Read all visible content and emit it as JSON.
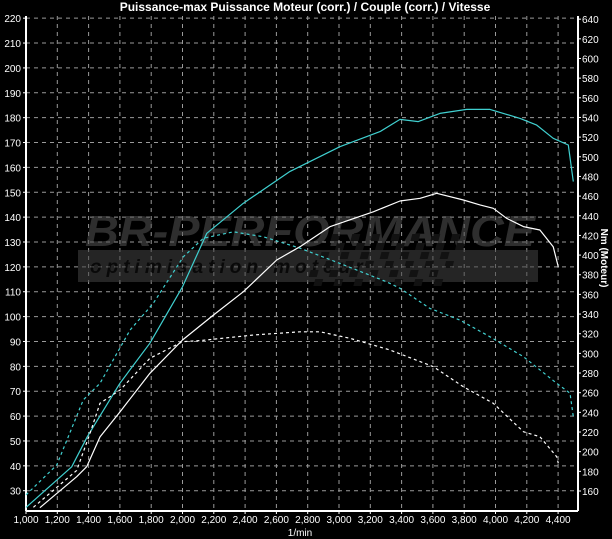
{
  "chart_data": {
    "type": "line",
    "title": "Puissance-max Puissance Moteur (corr.) / Couple (corr.) / Vitesse",
    "xlabel": "1/min",
    "ylabel_right": "Nm (Moteur)",
    "xlim": [
      1000,
      4520
    ],
    "ylim": [
      22,
      220
    ],
    "ylim_right": [
      140,
      640
    ],
    "x_ticks": [
      "1,000",
      "1,200",
      "1,400",
      "1,600",
      "1,800",
      "2,000",
      "2,200",
      "2,400",
      "2,600",
      "2,800",
      "3,000",
      "3,200",
      "3,400",
      "3,600",
      "3,800",
      "4,000",
      "4,200",
      "4,400"
    ],
    "y_ticks": [
      30,
      40,
      50,
      60,
      70,
      80,
      90,
      100,
      110,
      120,
      130,
      140,
      150,
      160,
      170,
      180,
      190,
      200,
      210,
      220
    ],
    "y_ticks_right": [
      160,
      180,
      200,
      220,
      240,
      260,
      280,
      300,
      320,
      340,
      360,
      380,
      400,
      420,
      440,
      460,
      480,
      500,
      520,
      540,
      560,
      580,
      600,
      620,
      640
    ],
    "grid": true,
    "background": "#000000",
    "colors": {
      "power": "#40d0d0",
      "torque": "#ffffff",
      "grid": "#9a9a9a"
    },
    "series": [
      {
        "axis": "left",
        "style": "solid",
        "color": "#40d0d0",
        "x": [
          1000,
          1292,
          1392,
          1600,
          1792,
          2000,
          2155,
          2389,
          2687,
          3006,
          3262,
          3390,
          3507,
          3645,
          3816,
          3965,
          4157,
          4263,
          4369,
          4465,
          4497
        ],
        "y": [
          23.3,
          39.6,
          51.7,
          73.2,
          89.3,
          112,
          133.5,
          145.6,
          158.4,
          168.3,
          174.4,
          179.3,
          178.4,
          181.7,
          183.3,
          183.3,
          179.7,
          177,
          171.7,
          169,
          154.3
        ]
      },
      {
        "axis": "right",
        "style": "solid",
        "color": "#ffffff",
        "x": [
          1089,
          1324,
          1388,
          1473,
          1601,
          1792,
          2000,
          2198,
          2389,
          2602,
          2751,
          2942,
          3219,
          3390,
          3518,
          3624,
          3795,
          3901,
          3986,
          4071,
          4178,
          4284,
          4369,
          4401
        ],
        "y": [
          143,
          174.5,
          184.7,
          215,
          240.7,
          279.7,
          313.6,
          339,
          362.7,
          395,
          408.5,
          428.9,
          444,
          455,
          457.8,
          462.8,
          456,
          451,
          447.6,
          437.4,
          429,
          425.5,
          408.5,
          388
        ]
      },
      {
        "axis": "left",
        "style": "dashed",
        "color": "#40d0d0",
        "x": [
          1000,
          1196,
          1366,
          1473,
          1665,
          1813,
          2006,
          2133,
          2325,
          2517,
          2751,
          3006,
          3304,
          3390,
          3581,
          3773,
          3965,
          4178,
          4391,
          4476,
          4497
        ],
        "y": [
          28.3,
          40.3,
          66.5,
          73.2,
          94.6,
          105.3,
          124.1,
          131.5,
          134.1,
          132.1,
          127.5,
          121.4,
          114,
          111.4,
          103.3,
          98.6,
          91.9,
          83.9,
          73.2,
          69.2,
          59.8
        ]
      },
      {
        "axis": "right",
        "style": "dashed",
        "color": "#ffffff",
        "x": [
          1047,
          1324,
          1409,
          1473,
          1601,
          1792,
          2000,
          2112,
          2453,
          2751,
          2879,
          3070,
          3326,
          3603,
          3795,
          3986,
          4178,
          4284,
          4391,
          4401
        ],
        "y": [
          143.4,
          181,
          218.7,
          249.2,
          262.7,
          295,
          311.9,
          313,
          318.7,
          322,
          322,
          315.3,
          303.4,
          286.4,
          266,
          249.2,
          220.3,
          215.2,
          194.9,
          188.2
        ]
      }
    ]
  },
  "watermark": {
    "brand": "BR-PERFORMANCE",
    "tagline": "optimisation moteur"
  }
}
